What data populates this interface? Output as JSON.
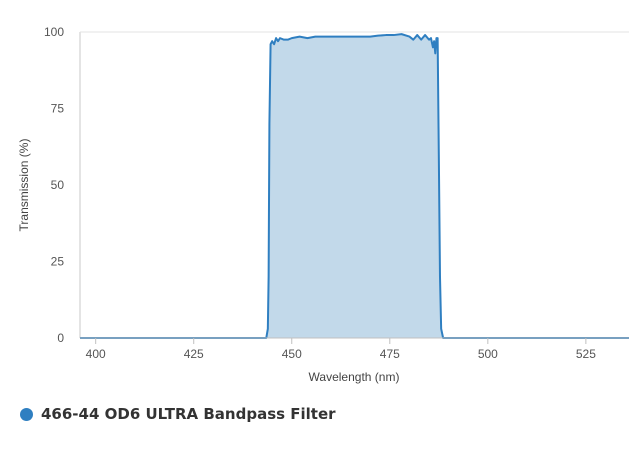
{
  "chart_data": {
    "type": "area",
    "xlabel": "Wavelength (nm)",
    "ylabel": "Transmission (%)",
    "xlim": [
      396,
      536
    ],
    "ylim": [
      0,
      100
    ],
    "x_ticks": [
      400,
      425,
      450,
      475,
      500,
      525
    ],
    "y_ticks": [
      0,
      25,
      50,
      75,
      100
    ],
    "grid": false,
    "legend_position": "bottom-left",
    "series": [
      {
        "name": "466-44 OD6 ULTRA Bandpass Filter",
        "color": "#2f7fc1",
        "fill": "#c2d9ea",
        "x": [
          396,
          443.5,
          443.9,
          444.1,
          444.3,
          444.6,
          445,
          445.5,
          446,
          446.5,
          447,
          448,
          449,
          450,
          452,
          454,
          456,
          458,
          460,
          462,
          465,
          468,
          470,
          472,
          474,
          476,
          478,
          480,
          481,
          482,
          483,
          484,
          485,
          485.5,
          486,
          486.3,
          486.6,
          486.9,
          487.2,
          487.5,
          487.8,
          488.1,
          488.6,
          536
        ],
        "y": [
          0,
          0,
          3,
          20,
          70,
          96,
          97,
          96,
          98,
          97,
          98,
          97.5,
          97.5,
          98,
          98.5,
          98,
          98.5,
          98.5,
          98.5,
          98.5,
          98.5,
          98.5,
          98.5,
          98.8,
          99,
          99,
          99.3,
          98.5,
          97.5,
          99,
          97.5,
          99,
          97.5,
          98,
          95,
          97,
          93,
          98,
          98,
          60,
          20,
          3,
          0,
          0
        ]
      }
    ]
  }
}
